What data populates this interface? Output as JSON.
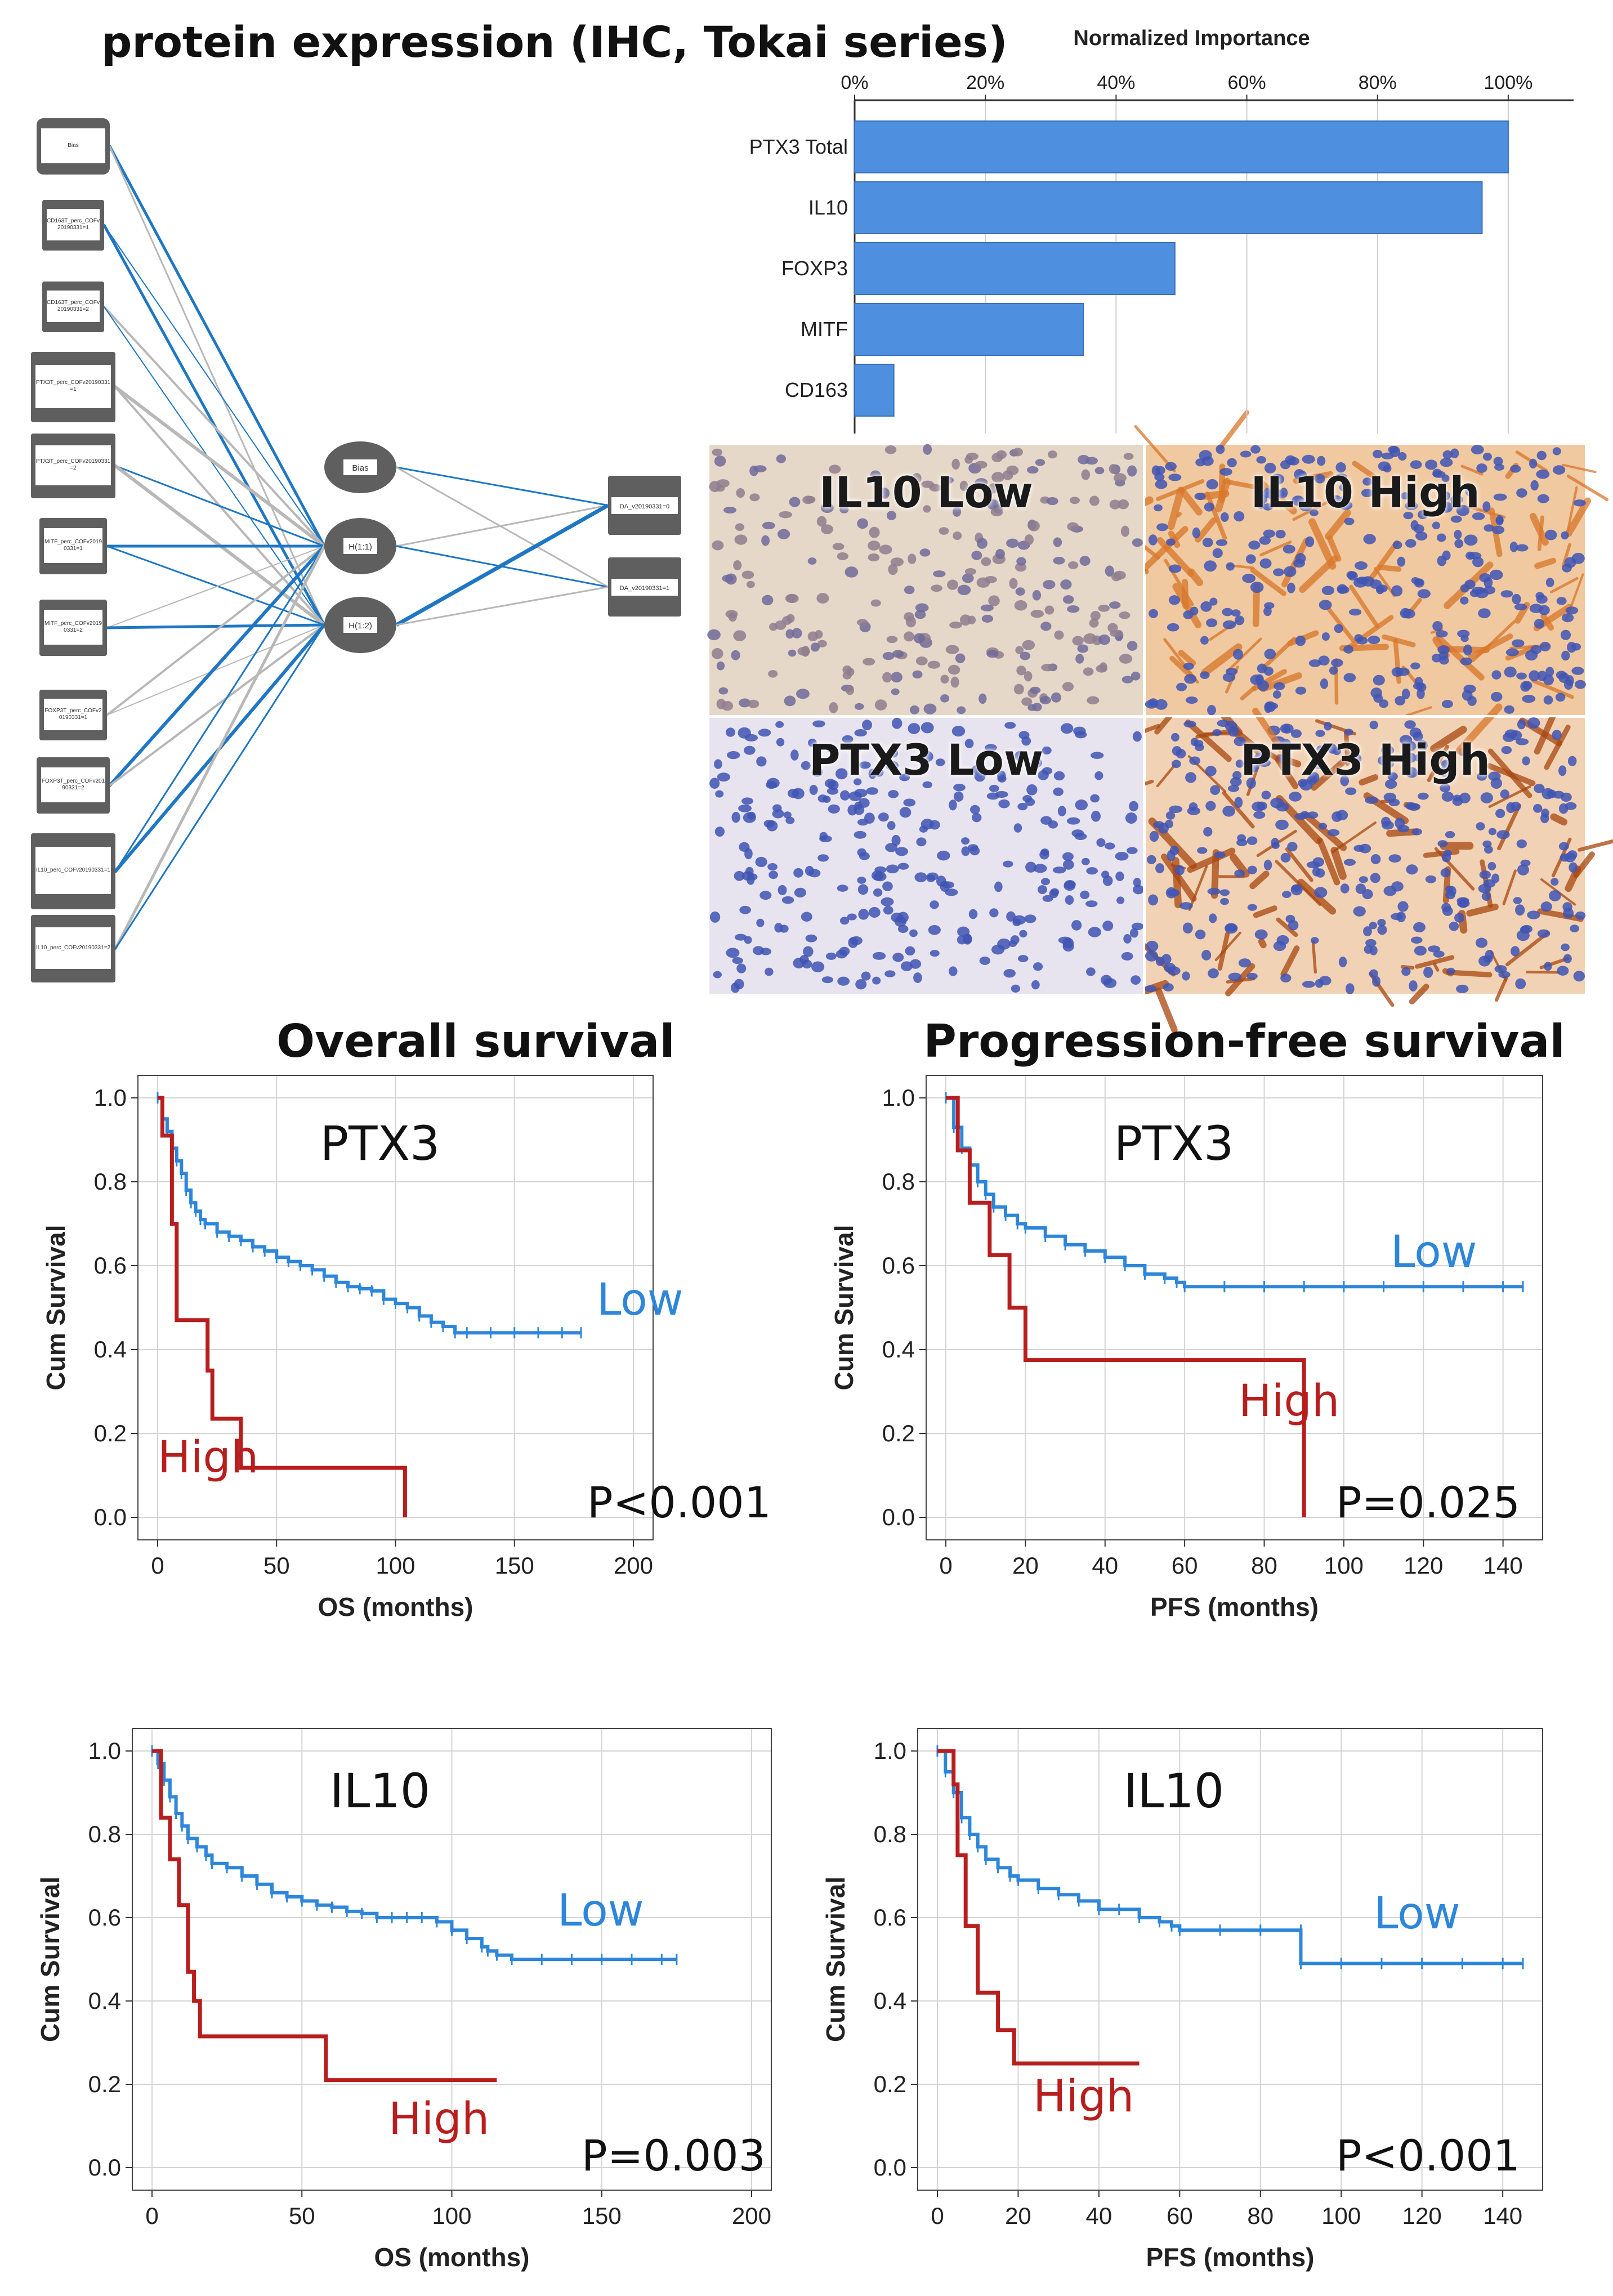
{
  "figure_title": "protein expression (IHC, Tokai series)",
  "network": {
    "inputs": [
      "Bias",
      "CD163T_perc_COFv20190331=1",
      "CD163T_perc_COFv20190331=2",
      "PTX3T_perc_COFv20190331=1",
      "PTX3T_perc_COFv20190331=2",
      "MITF_perc_COFv20190331=1",
      "MITF_perc_COFv20190331=2",
      "FOXP3T_perc_COFv20190331=1",
      "FOXP3T_perc_COFv20190331=2",
      "IL10_perc_COFv20190331=1",
      "IL10_perc_COFv20190331=2"
    ],
    "hidden": [
      "Bias",
      "H(1:1)",
      "H(1:2)"
    ],
    "outputs": [
      "DA_v20190331=0",
      "DA_v20190331=1"
    ],
    "colors": {
      "positive": "#1f77c4",
      "negative": "#b8b8b8",
      "node": "#5f5f5f"
    }
  },
  "ihc": {
    "panels": [
      {
        "label": "IL10 Low",
        "stain": "low"
      },
      {
        "label": "IL10 High",
        "stain": "high"
      },
      {
        "label": "PTX3 Low",
        "stain": "low"
      },
      {
        "label": "PTX3 High",
        "stain": "high"
      }
    ]
  },
  "section_titles": {
    "os": "Overall survival",
    "pfs": "Progression-free survival"
  },
  "chart_data": [
    {
      "type": "bar",
      "orientation": "horizontal",
      "title": "Normalized Importance",
      "categories": [
        "PTX3 Total",
        "IL10",
        "FOXP3",
        "MITF",
        "CD163"
      ],
      "values": [
        100,
        96,
        49,
        35,
        6
      ],
      "ticks": [
        "0%",
        "20%",
        "40%",
        "60%",
        "80%",
        "100%"
      ],
      "xlim": [
        0,
        110
      ],
      "color": "#4f8fe0"
    },
    {
      "type": "line",
      "title": "PTX3",
      "xlabel": "OS (months)",
      "ylabel": "Cum Survival",
      "xlim": [
        0,
        200
      ],
      "ylim": [
        0,
        1
      ],
      "xticks": [
        "0",
        "50",
        "100",
        "150",
        "200"
      ],
      "yticks": [
        "0.0",
        "0.2",
        "0.4",
        "0.6",
        "0.8",
        "1.0"
      ],
      "pvalue": "P<0.001",
      "series": [
        {
          "name": "Low",
          "color": "#2d86d9",
          "x": [
            0,
            2,
            4,
            6,
            8,
            10,
            12,
            14,
            16,
            18,
            20,
            25,
            30,
            35,
            40,
            45,
            50,
            55,
            60,
            65,
            70,
            75,
            80,
            85,
            90,
            95,
            100,
            105,
            110,
            115,
            120,
            125,
            130,
            140,
            150,
            160,
            170,
            178
          ],
          "y": [
            1.0,
            0.95,
            0.92,
            0.88,
            0.85,
            0.82,
            0.78,
            0.75,
            0.73,
            0.71,
            0.7,
            0.68,
            0.67,
            0.66,
            0.645,
            0.635,
            0.62,
            0.61,
            0.6,
            0.59,
            0.575,
            0.56,
            0.55,
            0.545,
            0.54,
            0.52,
            0.51,
            0.5,
            0.48,
            0.465,
            0.455,
            0.44,
            0.44,
            0.44,
            0.44,
            0.44,
            0.44,
            0.44
          ]
        },
        {
          "name": "High",
          "color": "#b81e1e",
          "x": [
            0,
            2,
            2,
            6,
            6,
            8,
            8,
            21,
            21,
            23,
            23,
            35,
            35,
            104,
            104
          ],
          "y": [
            1.0,
            1.0,
            0.91,
            0.91,
            0.7,
            0.7,
            0.47,
            0.47,
            0.35,
            0.35,
            0.235,
            0.235,
            0.118,
            0.118,
            0.0
          ]
        }
      ]
    },
    {
      "type": "line",
      "title": "PTX3",
      "xlabel": "PFS (months)",
      "ylabel": "Cum Survival",
      "xlim": [
        0,
        145
      ],
      "ylim": [
        0,
        1
      ],
      "xticks": [
        "0",
        "20",
        "40",
        "60",
        "80",
        "100",
        "120",
        "140"
      ],
      "yticks": [
        "0.0",
        "0.2",
        "0.4",
        "0.6",
        "0.8",
        "1.0"
      ],
      "pvalue": "P=0.025",
      "series": [
        {
          "name": "Low",
          "color": "#2d86d9",
          "x": [
            0,
            2,
            4,
            6,
            8,
            10,
            12,
            15,
            18,
            20,
            25,
            30,
            35,
            40,
            45,
            50,
            55,
            58,
            60,
            70,
            80,
            90,
            100,
            110,
            120,
            130,
            140,
            145
          ],
          "y": [
            1.0,
            0.93,
            0.88,
            0.84,
            0.8,
            0.77,
            0.74,
            0.72,
            0.7,
            0.69,
            0.67,
            0.65,
            0.635,
            0.62,
            0.6,
            0.58,
            0.57,
            0.56,
            0.55,
            0.55,
            0.55,
            0.55,
            0.55,
            0.55,
            0.55,
            0.55,
            0.55,
            0.55
          ]
        },
        {
          "name": "High",
          "color": "#b81e1e",
          "x": [
            0,
            3,
            3,
            6,
            6,
            11,
            11,
            16,
            16,
            20,
            20,
            90,
            90
          ],
          "y": [
            1.0,
            1.0,
            0.875,
            0.875,
            0.75,
            0.75,
            0.625,
            0.625,
            0.5,
            0.5,
            0.375,
            0.375,
            0.0
          ]
        }
      ]
    },
    {
      "type": "line",
      "title": "IL10",
      "xlabel": "OS (months)",
      "ylabel": "Cum Survival",
      "xlim": [
        0,
        200
      ],
      "ylim": [
        0,
        1
      ],
      "xticks": [
        "0",
        "50",
        "100",
        "150",
        "200"
      ],
      "yticks": [
        "0.0",
        "0.2",
        "0.4",
        "0.6",
        "0.8",
        "1.0"
      ],
      "pvalue": "P=0.003",
      "series": [
        {
          "name": "Low",
          "color": "#2d86d9",
          "x": [
            0,
            2,
            4,
            6,
            8,
            10,
            12,
            15,
            18,
            20,
            25,
            30,
            35,
            40,
            45,
            50,
            55,
            60,
            65,
            70,
            75,
            80,
            85,
            90,
            95,
            100,
            105,
            110,
            112,
            115,
            120,
            130,
            140,
            150,
            160,
            170,
            175
          ],
          "y": [
            1.0,
            0.97,
            0.93,
            0.89,
            0.85,
            0.82,
            0.79,
            0.77,
            0.75,
            0.73,
            0.72,
            0.7,
            0.68,
            0.66,
            0.65,
            0.64,
            0.63,
            0.625,
            0.615,
            0.61,
            0.6,
            0.6,
            0.6,
            0.6,
            0.59,
            0.57,
            0.55,
            0.53,
            0.52,
            0.51,
            0.5,
            0.5,
            0.5,
            0.5,
            0.5,
            0.5,
            0.5
          ]
        },
        {
          "name": "High",
          "color": "#b81e1e",
          "x": [
            0,
            3,
            3,
            6,
            6,
            9,
            9,
            12,
            12,
            14,
            14,
            16,
            16,
            58,
            58,
            115
          ],
          "y": [
            1.0,
            1.0,
            0.84,
            0.84,
            0.74,
            0.74,
            0.63,
            0.63,
            0.47,
            0.47,
            0.4,
            0.4,
            0.315,
            0.315,
            0.21,
            0.21
          ]
        }
      ]
    },
    {
      "type": "line",
      "title": "IL10",
      "xlabel": "PFS (months)",
      "ylabel": "Cum Survival",
      "xlim": [
        0,
        145
      ],
      "ylim": [
        0,
        1
      ],
      "xticks": [
        "0",
        "20",
        "40",
        "60",
        "80",
        "100",
        "120",
        "140"
      ],
      "yticks": [
        "0.0",
        "0.2",
        "0.4",
        "0.6",
        "0.8",
        "1.0"
      ],
      "pvalue": "P<0.001",
      "series": [
        {
          "name": "Low",
          "color": "#2d86d9",
          "x": [
            0,
            2,
            4,
            6,
            8,
            10,
            12,
            15,
            18,
            20,
            25,
            30,
            35,
            40,
            45,
            50,
            55,
            58,
            60,
            70,
            80,
            90,
            90,
            100,
            110,
            120,
            130,
            140,
            145
          ],
          "y": [
            1.0,
            0.95,
            0.9,
            0.84,
            0.8,
            0.77,
            0.74,
            0.72,
            0.7,
            0.69,
            0.67,
            0.655,
            0.64,
            0.62,
            0.62,
            0.6,
            0.59,
            0.58,
            0.57,
            0.57,
            0.57,
            0.57,
            0.49,
            0.49,
            0.49,
            0.49,
            0.49,
            0.49,
            0.49
          ]
        },
        {
          "name": "High",
          "color": "#b81e1e",
          "x": [
            0,
            4,
            4,
            5,
            5,
            7,
            7,
            10,
            10,
            15,
            15,
            19,
            19,
            50
          ],
          "y": [
            1.0,
            1.0,
            0.92,
            0.92,
            0.75,
            0.75,
            0.58,
            0.58,
            0.42,
            0.42,
            0.33,
            0.33,
            0.25,
            0.25
          ]
        }
      ]
    }
  ]
}
